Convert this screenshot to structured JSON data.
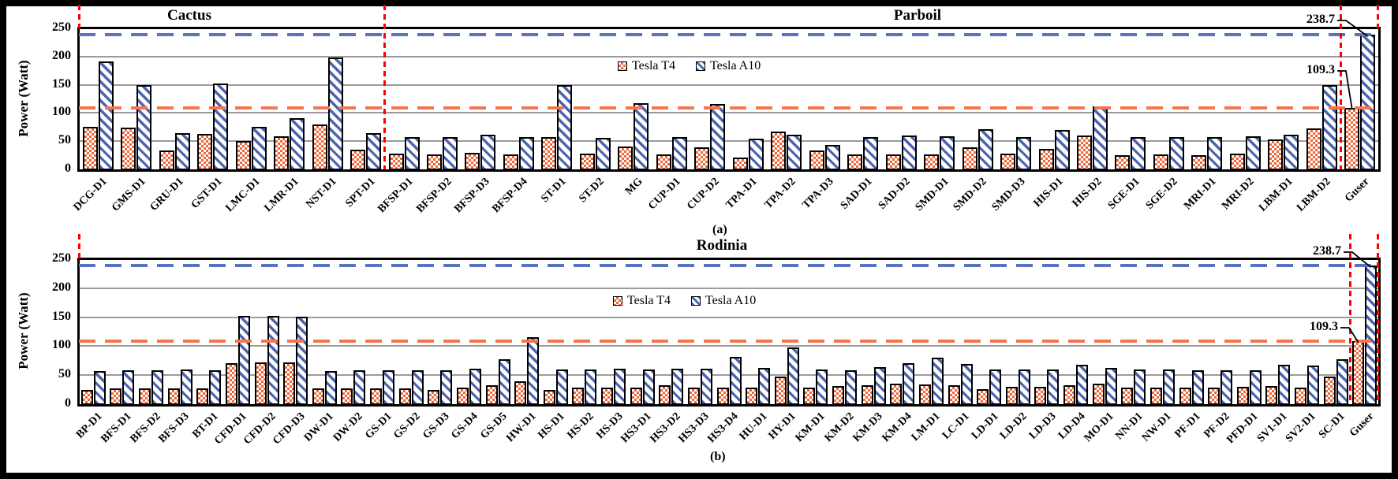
{
  "figure": {
    "ylabel": "Power (Watt)",
    "colors": {
      "tesla_t4": "#ED6A3C",
      "tesla_a10": "#4D64B0",
      "t4_threshold_dash": "#F4764E",
      "a10_threshold_dash": "#5A72C0",
      "divider_dash": "#FF0000",
      "gridline": "#9B9B9B"
    }
  },
  "chart_data": [
    {
      "id": "a",
      "type": "bar",
      "sublabel": "(a)",
      "section_labels": [
        "Cactus",
        "Parboil"
      ],
      "ylabel": "Power (Watt)",
      "ylim": [
        0,
        250
      ],
      "yticks": [
        0,
        50,
        100,
        150,
        200,
        250
      ],
      "legend_position": "top-center",
      "grid": true,
      "categories": [
        "DCG-D1",
        "GMS-D1",
        "GRU-D1",
        "GST-D1",
        "LMC-D1",
        "LMR-D1",
        "NST-D1",
        "SPT-D1",
        "BFSP-D1",
        "BFSP-D2",
        "BFSP-D3",
        "BFSP-D4",
        "ST-D1",
        "ST-D2",
        "MG",
        "CUP-D1",
        "CUP-D2",
        "TPA-D1",
        "TPA-D2",
        "TPA-D3",
        "SAD-D1",
        "SAD-D2",
        "SMD-D1",
        "SMD-D2",
        "SMD-D3",
        "HIS-D1",
        "HIS-D2",
        "SGE-D1",
        "SGE-D2",
        "MRI-D1",
        "MRI-D2",
        "LBM-D1",
        "LBM-D2",
        "Guser"
      ],
      "series": [
        {
          "name": "Tesla T4",
          "pattern": "checker",
          "values": [
            76,
            74,
            33,
            63,
            51,
            59,
            79,
            35,
            28,
            27,
            29,
            27,
            58,
            28,
            40,
            27,
            39,
            21,
            67,
            34,
            27,
            27,
            27,
            39,
            28,
            36,
            60,
            25,
            27,
            25,
            28,
            53,
            72,
            109.3
          ]
        },
        {
          "name": "Tesla A10",
          "pattern": "stripe",
          "values": [
            192,
            150,
            65,
            152,
            75,
            91,
            198,
            64,
            58,
            58,
            61,
            57,
            150,
            56,
            117,
            57,
            116,
            54,
            62,
            44,
            57,
            60,
            59,
            71,
            57,
            70,
            112,
            57,
            58,
            57,
            59,
            61,
            150,
            238.7
          ]
        }
      ],
      "hlines": [
        {
          "label": "238.7",
          "value": 238.7,
          "style": "blue"
        },
        {
          "label": "109.3",
          "value": 109.3,
          "style": "orange"
        }
      ],
      "divider_slots": [
        0,
        8,
        33,
        34
      ],
      "annotations": [
        {
          "text": "238.7",
          "series": 1,
          "category": "Guser",
          "value": 238.7
        },
        {
          "text": "109.3",
          "series": 0,
          "category": "Guser",
          "value": 109.3
        }
      ]
    },
    {
      "id": "b",
      "type": "bar",
      "sublabel": "(b)",
      "section_labels": [
        "Rodinia"
      ],
      "ylabel": "Power (Watt)",
      "ylim": [
        0,
        250
      ],
      "yticks": [
        0,
        50,
        100,
        150,
        200,
        250
      ],
      "legend_position": "top-center",
      "grid": true,
      "categories": [
        "BP-D1",
        "BFS-D1",
        "BFS-D2",
        "BFS-D3",
        "BT-D1",
        "CFD-D1",
        "CFD-D2",
        "CFD-D3",
        "DW-D1",
        "DW-D2",
        "GS-D1",
        "GS-D2",
        "GS-D3",
        "GS-D4",
        "GS-D5",
        "HW-D1",
        "HS-D1",
        "HS-D2",
        "HS-D3",
        "HS3-D1",
        "HS3-D2",
        "HS3-D3",
        "HS3-D4",
        "HU-D1",
        "HY-D1",
        "KM-D1",
        "KM-D2",
        "KM-D3",
        "KM-D4",
        "LM-D1",
        "LC-D1",
        "LD-D1",
        "LD-D2",
        "LD-D3",
        "LD-D4",
        "MO-D1",
        "NN-D1",
        "NW-D1",
        "PF-D1",
        "PF-D2",
        "PFD-D1",
        "SV1-D1",
        "SV2-D1",
        "SC-D1",
        "Guser"
      ],
      "series": [
        {
          "name": "Tesla T4",
          "pattern": "checker",
          "values": [
            25,
            27,
            27,
            27,
            27,
            71,
            72,
            72,
            27,
            27,
            27,
            27,
            25,
            28,
            33,
            39,
            25,
            28,
            28,
            28,
            33,
            28,
            29,
            28,
            47,
            28,
            31,
            33,
            35,
            34,
            32,
            26,
            30,
            30,
            33,
            36,
            28,
            28,
            28,
            28,
            30,
            31,
            29,
            47,
            109.3
          ]
        },
        {
          "name": "Tesla A10",
          "pattern": "stripe",
          "values": [
            57,
            58,
            58,
            60,
            58,
            152,
            152,
            151,
            57,
            58,
            59,
            59,
            58,
            61,
            78,
            116,
            60,
            60,
            61,
            60,
            61,
            61,
            82,
            62,
            98,
            60,
            59,
            64,
            71,
            80,
            69,
            60,
            60,
            60,
            68,
            62,
            60,
            60,
            58,
            59,
            58,
            68,
            67,
            77,
            238.7
          ]
        }
      ],
      "hlines": [
        {
          "label": "238.7",
          "value": 238.7,
          "style": "blue"
        },
        {
          "label": "109.3",
          "value": 109.3,
          "style": "orange"
        }
      ],
      "divider_slots": [
        0,
        44,
        45
      ],
      "annotations": [
        {
          "text": "238.7",
          "series": 1,
          "category": "Guser",
          "value": 238.7
        },
        {
          "text": "109.3",
          "series": 0,
          "category": "Guser",
          "value": 109.3
        }
      ]
    }
  ]
}
